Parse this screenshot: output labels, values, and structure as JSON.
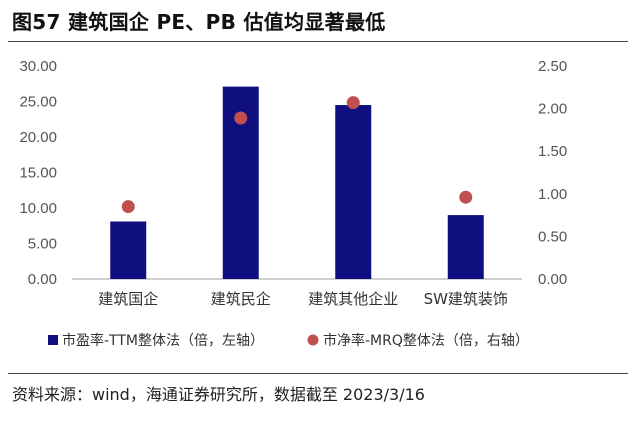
{
  "figure": {
    "title": "图57 建筑国企 PE、PB 估值均显著最低",
    "source": "资料来源：wind，海通证券研究所，数据截至 2023/3/16"
  },
  "colors": {
    "bar": "#0f0f80",
    "dot": "#c0504d",
    "axis": "#bfbfbf"
  },
  "chart_data": {
    "type": "bar",
    "categories": [
      "建筑国企",
      "建筑民企",
      "建筑其他企业",
      "SW建筑装饰"
    ],
    "series": [
      {
        "name": "市盈率-TTM整体法（倍，左轴）",
        "type": "bar",
        "axis": "left",
        "values": [
          8.1,
          27.1,
          24.5,
          9.0
        ]
      },
      {
        "name": "市净率-MRQ整体法（倍，右轴）",
        "type": "scatter",
        "axis": "right",
        "values": [
          0.85,
          1.89,
          2.07,
          0.96
        ]
      }
    ],
    "y_left": {
      "min": 0,
      "max": 30,
      "ticks": [
        "0.00",
        "5.00",
        "10.00",
        "15.00",
        "20.00",
        "25.00",
        "30.00"
      ]
    },
    "y_right": {
      "min": 0,
      "max": 2.5,
      "ticks": [
        "0.00",
        "0.50",
        "1.00",
        "1.50",
        "2.00",
        "2.50"
      ]
    },
    "grid": false,
    "legend_position": "bottom"
  }
}
